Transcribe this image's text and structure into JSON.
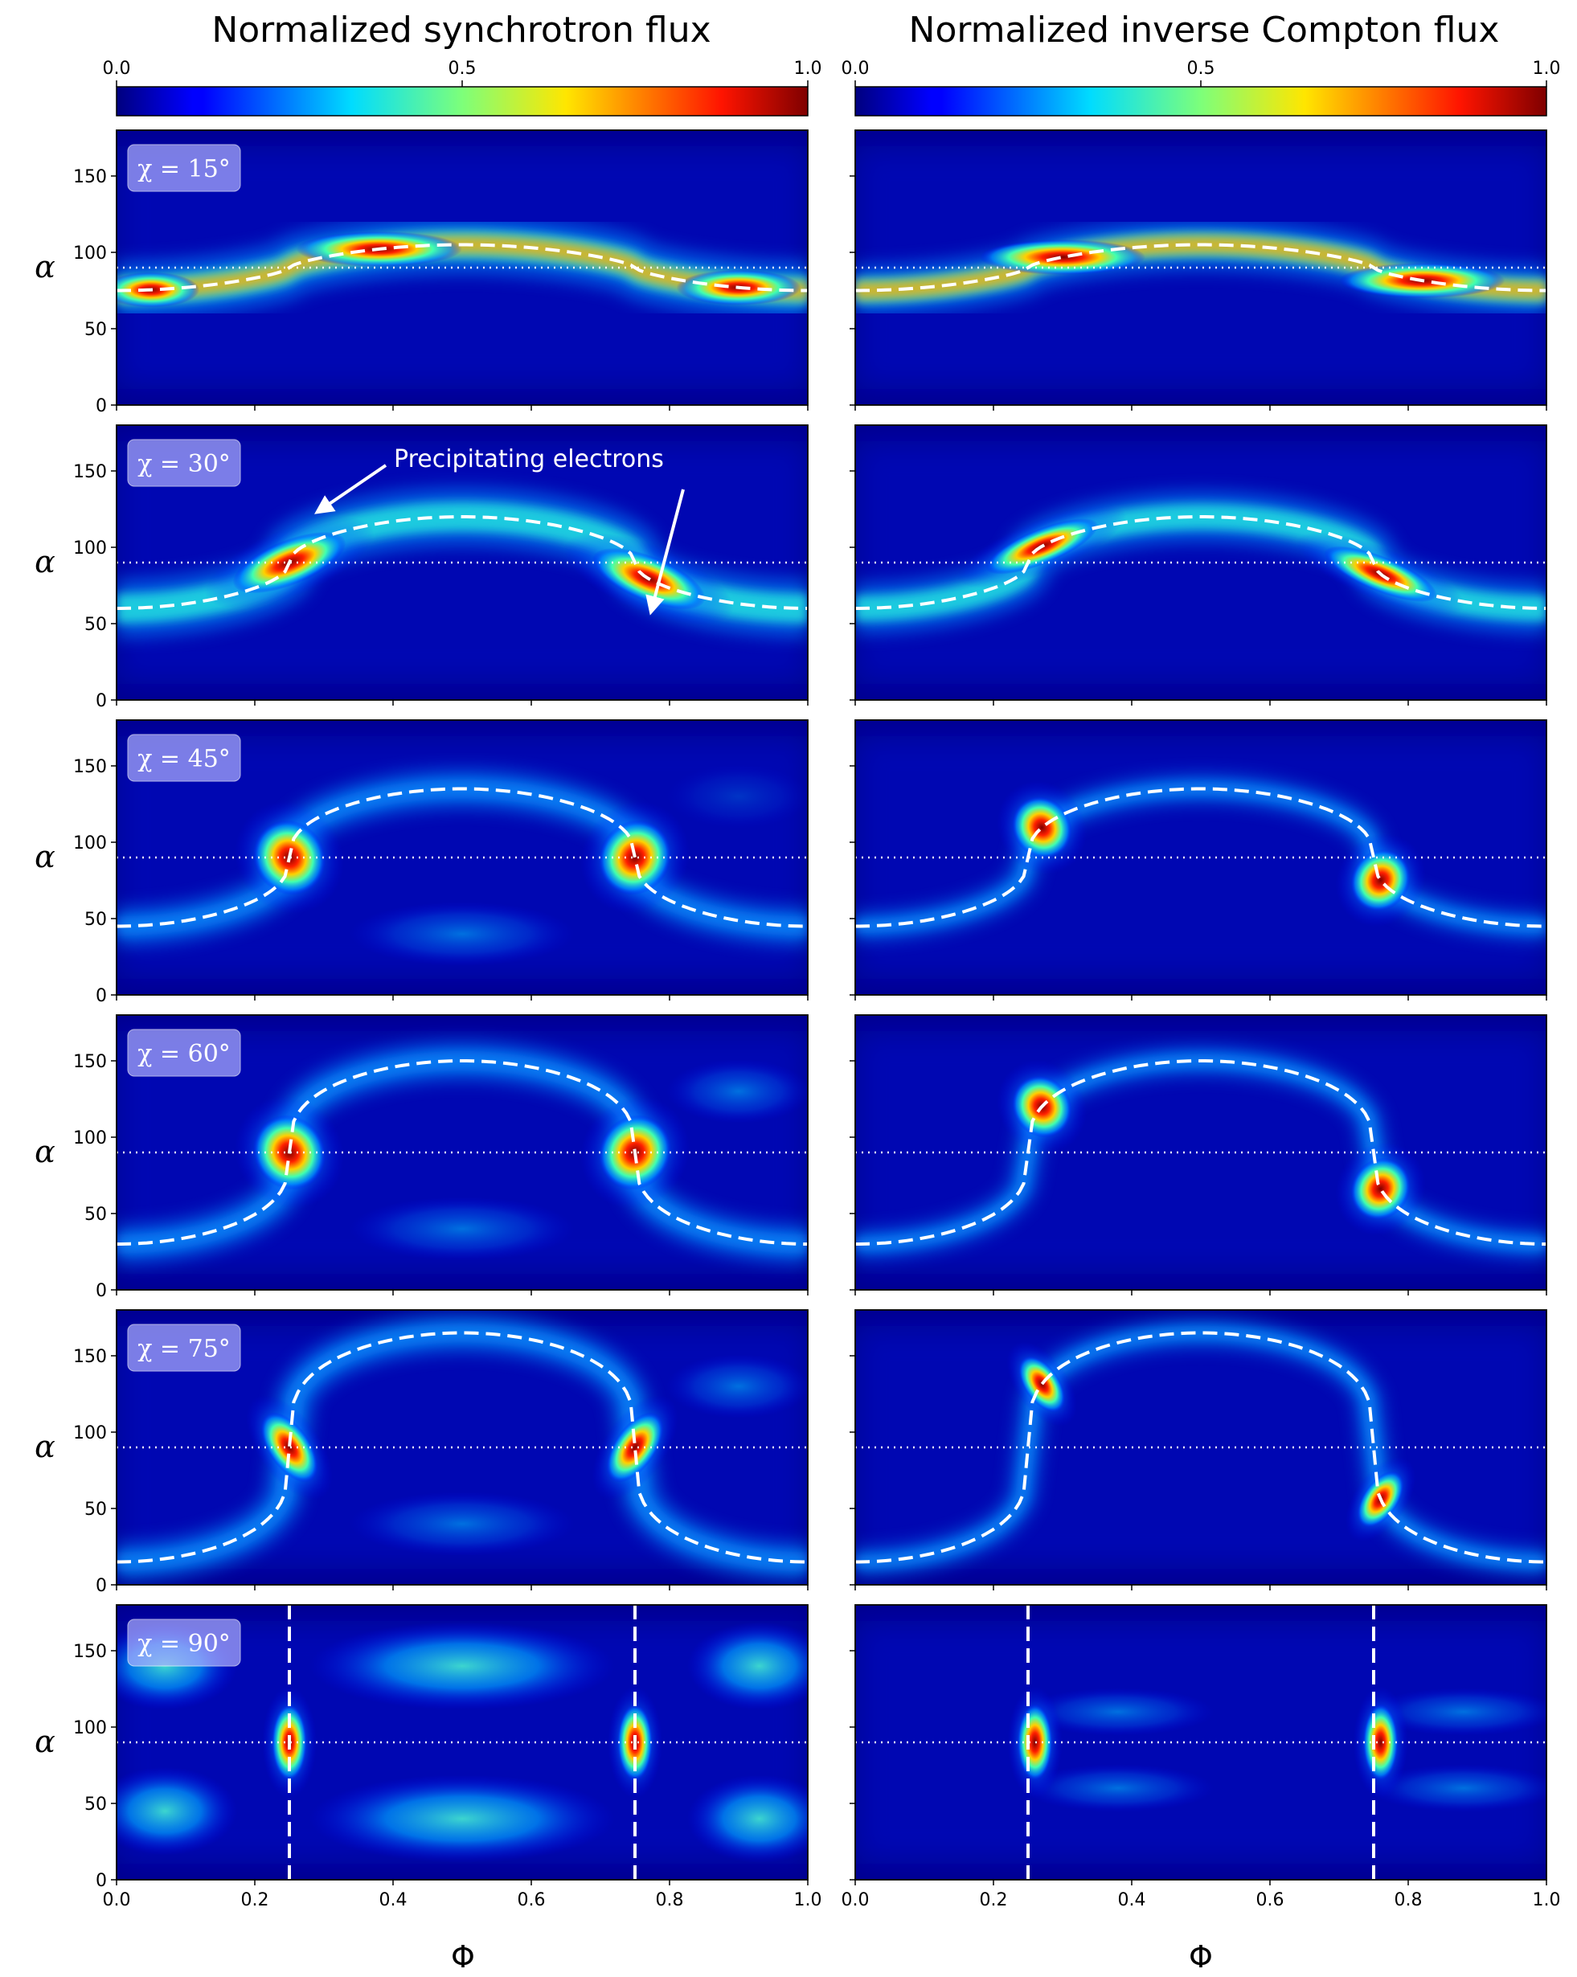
{
  "chart_data": [
    {
      "type": "heatmap",
      "title": "Normalized synchrotron flux",
      "colorbar": {
        "colormap": "jet",
        "range": [
          0.0,
          1.0
        ],
        "ticks": [
          "0.0",
          "0.5",
          "1.0"
        ],
        "placement": "top"
      },
      "xlabel": "Φ",
      "ylabel": "α",
      "xlim": [
        0.0,
        1.0
      ],
      "ylim": [
        0,
        180
      ],
      "xticks": [
        "0.0",
        "0.2",
        "0.4",
        "0.6",
        "0.8",
        "1.0"
      ],
      "yticks": [
        "0",
        "50",
        "100",
        "150"
      ],
      "panels": [
        {
          "label": "χ = 15°",
          "chi": 15,
          "dashed_curve": "α(Φ)",
          "dotted_line_alpha": 90
        },
        {
          "label": "χ = 30°",
          "chi": 30,
          "dashed_curve": "α(Φ)",
          "dotted_line_alpha": 90,
          "annotation": "Precipitating electrons"
        },
        {
          "label": "χ = 45°",
          "chi": 45,
          "dashed_curve": "α(Φ)",
          "dotted_line_alpha": 90
        },
        {
          "label": "χ = 60°",
          "chi": 60,
          "dashed_curve": "α(Φ)",
          "dotted_line_alpha": 90
        },
        {
          "label": "χ = 75°",
          "chi": 75,
          "dashed_curve": "α(Φ)",
          "dotted_line_alpha": 90
        },
        {
          "label": "χ = 90°",
          "chi": 90,
          "dashed_vertical_lines_phi": [
            0.25,
            0.75
          ],
          "dotted_line_alpha": 90
        }
      ]
    },
    {
      "type": "heatmap",
      "title": "Normalized inverse Compton flux",
      "colorbar": {
        "colormap": "jet",
        "range": [
          0.0,
          1.0
        ],
        "ticks": [
          "0.0",
          "0.5",
          "1.0"
        ],
        "placement": "top"
      },
      "xlabel": "Φ",
      "xlim": [
        0.0,
        1.0
      ],
      "ylim": [
        0,
        180
      ],
      "xticks": [
        "0.0",
        "0.2",
        "0.4",
        "0.6",
        "0.8",
        "1.0"
      ],
      "panels": [
        {
          "chi": 15,
          "dashed_curve": "α(Φ)",
          "dotted_line_alpha": 90
        },
        {
          "chi": 30,
          "dashed_curve": "α(Φ)",
          "dotted_line_alpha": 90
        },
        {
          "chi": 45,
          "dashed_curve": "α(Φ)",
          "dotted_line_alpha": 90
        },
        {
          "chi": 60,
          "dashed_curve": "α(Φ)",
          "dotted_line_alpha": 90
        },
        {
          "chi": 75,
          "dashed_curve": "α(Φ)",
          "dotted_line_alpha": 90
        },
        {
          "chi": 90,
          "dashed_vertical_lines_phi": [
            0.25,
            0.75
          ],
          "dotted_line_alpha": 90
        }
      ]
    }
  ]
}
